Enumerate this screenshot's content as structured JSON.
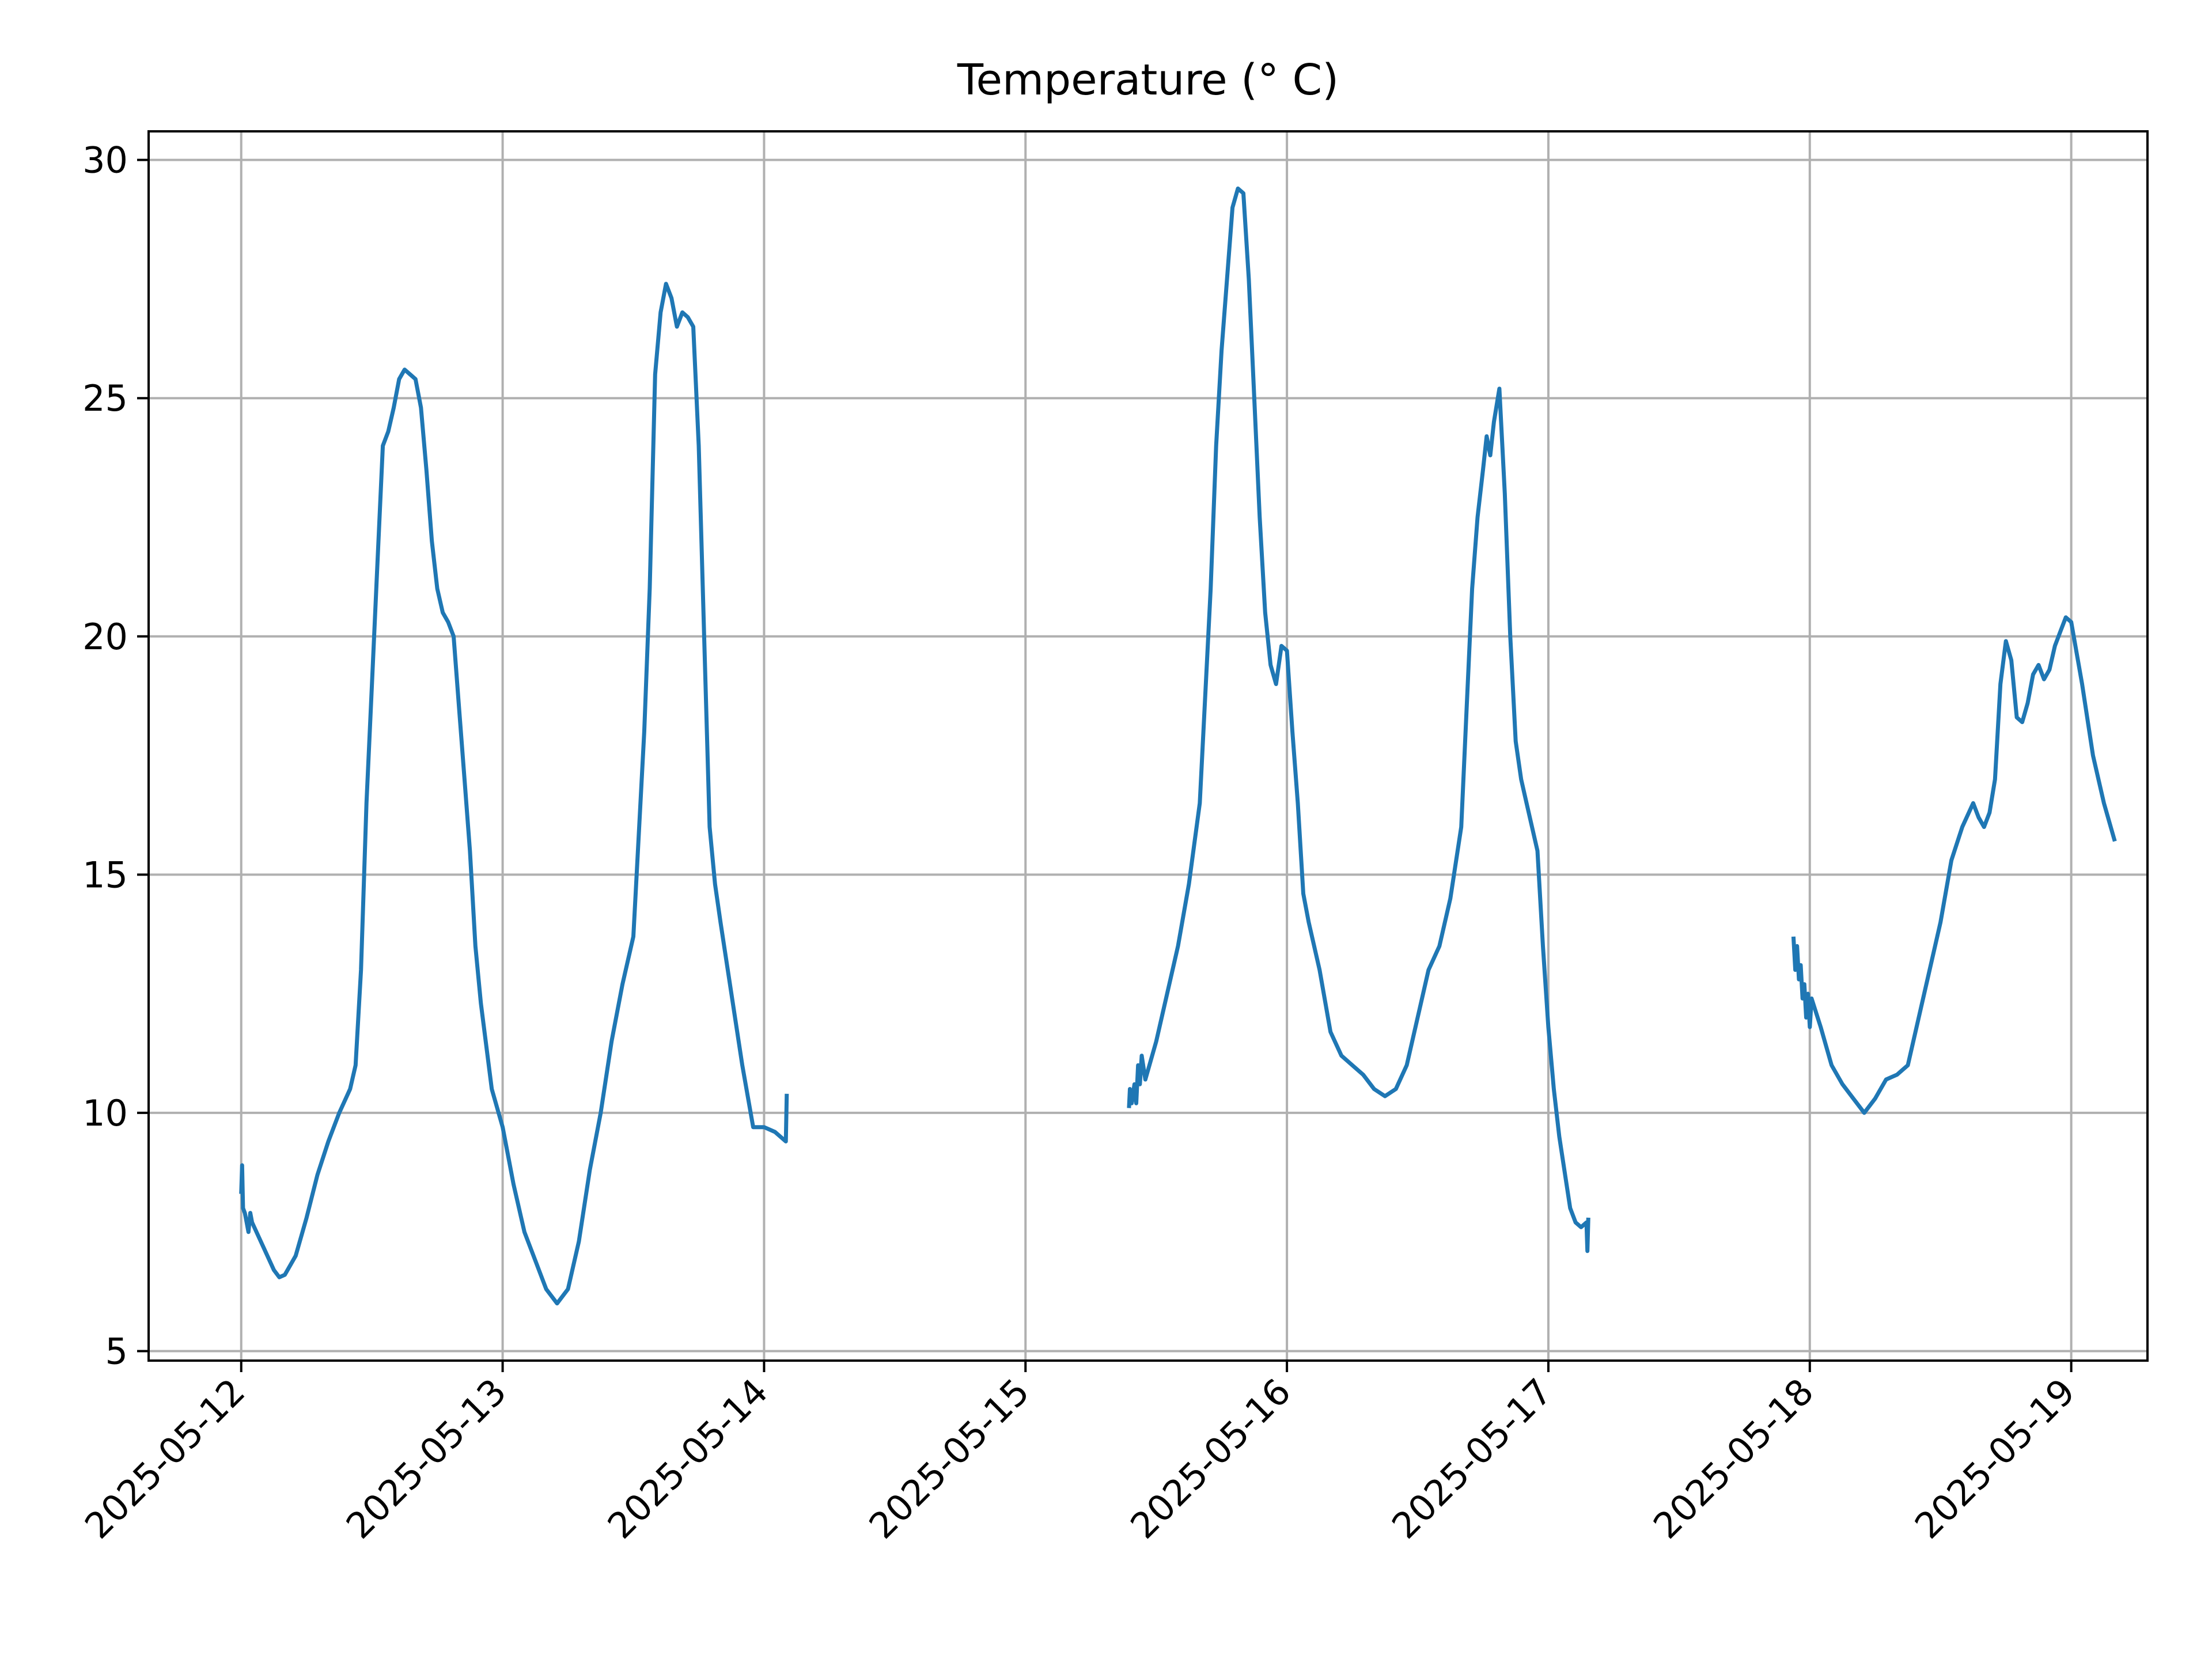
{
  "chart_data": {
    "type": "line",
    "title": "Temperature (° C)",
    "xlabel": "",
    "ylabel": "",
    "x_type": "date",
    "xlim": [
      "2025-05-11T15:30",
      "2025-05-19T07:00"
    ],
    "ylim": [
      4.8,
      30.6
    ],
    "x_ticks": [
      "2025-05-12",
      "2025-05-13",
      "2025-05-14",
      "2025-05-15",
      "2025-05-16",
      "2025-05-17",
      "2025-05-18",
      "2025-05-19"
    ],
    "y_ticks": [
      5,
      10,
      15,
      20,
      25,
      30
    ],
    "grid": true,
    "color": "#1f77b4",
    "series": [
      {
        "segments": [
          [
            [
              "2025-05-12T00:00",
              8.3
            ],
            [
              "2025-05-12T00:05",
              8.9
            ],
            [
              "2025-05-12T00:10",
              8.0
            ],
            [
              "2025-05-12T00:20",
              7.9
            ],
            [
              "2025-05-12T00:30",
              7.7
            ],
            [
              "2025-05-12T00:40",
              7.5
            ],
            [
              "2025-05-12T00:50",
              7.9
            ],
            [
              "2025-05-12T01:00",
              7.7
            ],
            [
              "2025-05-12T02:00",
              7.2
            ],
            [
              "2025-05-12T03:00",
              6.7
            ],
            [
              "2025-05-12T03:30",
              6.55
            ],
            [
              "2025-05-12T04:00",
              6.6
            ],
            [
              "2025-05-12T05:00",
              7.0
            ],
            [
              "2025-05-12T06:00",
              7.8
            ],
            [
              "2025-05-12T07:00",
              8.7
            ],
            [
              "2025-05-12T08:00",
              9.4
            ],
            [
              "2025-05-12T09:00",
              10.0
            ],
            [
              "2025-05-12T10:00",
              10.5
            ],
            [
              "2025-05-12T10:30",
              11.0
            ],
            [
              "2025-05-12T11:00",
              13.0
            ],
            [
              "2025-05-12T11:30",
              16.5
            ],
            [
              "2025-05-12T12:00",
              19.0
            ],
            [
              "2025-05-12T12:30",
              21.5
            ],
            [
              "2025-05-12T13:00",
              24.0
            ],
            [
              "2025-05-12T13:30",
              24.3
            ],
            [
              "2025-05-12T14:00",
              24.8
            ],
            [
              "2025-05-12T14:30",
              25.4
            ],
            [
              "2025-05-12T15:00",
              25.6
            ],
            [
              "2025-05-12T15:30",
              25.5
            ],
            [
              "2025-05-12T16:00",
              25.4
            ],
            [
              "2025-05-12T16:30",
              24.8
            ],
            [
              "2025-05-12T17:00",
              23.5
            ],
            [
              "2025-05-12T17:30",
              22.0
            ],
            [
              "2025-05-12T18:00",
              21.0
            ],
            [
              "2025-05-12T18:30",
              20.5
            ],
            [
              "2025-05-12T19:00",
              20.3
            ],
            [
              "2025-05-12T19:30",
              20.0
            ],
            [
              "2025-05-12T20:00",
              18.5
            ],
            [
              "2025-05-12T20:30",
              17.0
            ],
            [
              "2025-05-12T21:00",
              15.5
            ],
            [
              "2025-05-12T21:30",
              13.5
            ],
            [
              "2025-05-12T22:00",
              12.3
            ],
            [
              "2025-05-12T23:00",
              10.5
            ],
            [
              "2025-05-13T00:00",
              9.7
            ],
            [
              "2025-05-13T01:00",
              8.5
            ],
            [
              "2025-05-13T02:00",
              7.5
            ],
            [
              "2025-05-13T03:00",
              6.9
            ],
            [
              "2025-05-13T04:00",
              6.3
            ],
            [
              "2025-05-13T05:00",
              6.0
            ],
            [
              "2025-05-13T06:00",
              6.3
            ],
            [
              "2025-05-13T07:00",
              7.3
            ],
            [
              "2025-05-13T08:00",
              8.8
            ],
            [
              "2025-05-13T09:00",
              10.0
            ],
            [
              "2025-05-13T10:00",
              11.5
            ],
            [
              "2025-05-13T11:00",
              12.7
            ],
            [
              "2025-05-13T12:00",
              13.7
            ],
            [
              "2025-05-13T13:00",
              18.0
            ],
            [
              "2025-05-13T13:30",
              21.0
            ],
            [
              "2025-05-13T14:00",
              25.5
            ],
            [
              "2025-05-13T14:30",
              26.8
            ],
            [
              "2025-05-13T15:00",
              27.4
            ],
            [
              "2025-05-13T15:30",
              27.1
            ],
            [
              "2025-05-13T16:00",
              26.5
            ],
            [
              "2025-05-13T16:30",
              26.8
            ],
            [
              "2025-05-13T17:00",
              26.7
            ],
            [
              "2025-05-13T17:30",
              26.5
            ],
            [
              "2025-05-13T18:00",
              24.0
            ],
            [
              "2025-05-13T18:30",
              20.0
            ],
            [
              "2025-05-13T19:00",
              16.0
            ],
            [
              "2025-05-13T19:30",
              14.8
            ],
            [
              "2025-05-13T20:00",
              14.0
            ],
            [
              "2025-05-13T21:00",
              12.5
            ],
            [
              "2025-05-13T22:00",
              11.0
            ],
            [
              "2025-05-13T23:00",
              9.7
            ],
            [
              "2025-05-14T00:00",
              9.7
            ],
            [
              "2025-05-14T01:00",
              9.6
            ],
            [
              "2025-05-14T02:00",
              9.4
            ],
            [
              "2025-05-14T02:05",
              10.4
            ]
          ],
          [
            [
              "2025-05-15T09:30",
              10.1
            ],
            [
              "2025-05-15T09:35",
              10.5
            ],
            [
              "2025-05-15T09:45",
              10.2
            ],
            [
              "2025-05-15T10:00",
              10.6
            ],
            [
              "2025-05-15T10:10",
              10.2
            ],
            [
              "2025-05-15T10:20",
              11.0
            ],
            [
              "2025-05-15T10:30",
              10.6
            ],
            [
              "2025-05-15T10:40",
              11.2
            ],
            [
              "2025-05-15T11:00",
              10.7
            ],
            [
              "2025-05-15T12:00",
              11.5
            ],
            [
              "2025-05-15T13:00",
              12.5
            ],
            [
              "2025-05-15T14:00",
              13.5
            ],
            [
              "2025-05-15T15:00",
              14.8
            ],
            [
              "2025-05-15T16:00",
              16.5
            ],
            [
              "2025-05-15T17:00",
              21.0
            ],
            [
              "2025-05-15T17:30",
              24.0
            ],
            [
              "2025-05-15T18:00",
              26.0
            ],
            [
              "2025-05-15T18:30",
              27.5
            ],
            [
              "2025-05-15T19:00",
              29.0
            ],
            [
              "2025-05-15T19:30",
              29.4
            ],
            [
              "2025-05-15T20:00",
              29.3
            ],
            [
              "2025-05-15T20:30",
              27.5
            ],
            [
              "2025-05-15T21:00",
              25.0
            ],
            [
              "2025-05-15T21:30",
              22.5
            ],
            [
              "2025-05-15T22:00",
              20.5
            ],
            [
              "2025-05-15T22:30",
              19.4
            ],
            [
              "2025-05-15T23:00",
              19.0
            ],
            [
              "2025-05-15T23:30",
              19.8
            ],
            [
              "2025-05-16T00:00",
              19.7
            ],
            [
              "2025-05-16T00:30",
              18.0
            ],
            [
              "2025-05-16T01:00",
              16.5
            ],
            [
              "2025-05-16T01:30",
              14.6
            ],
            [
              "2025-05-16T02:00",
              14.0
            ],
            [
              "2025-05-16T03:00",
              13.0
            ],
            [
              "2025-05-16T04:00",
              11.7
            ],
            [
              "2025-05-16T05:00",
              11.2
            ],
            [
              "2025-05-16T06:00",
              11.0
            ],
            [
              "2025-05-16T07:00",
              10.8
            ],
            [
              "2025-05-16T08:00",
              10.5
            ],
            [
              "2025-05-16T09:00",
              10.35
            ],
            [
              "2025-05-16T10:00",
              10.5
            ],
            [
              "2025-05-16T11:00",
              11.0
            ],
            [
              "2025-05-16T12:00",
              12.0
            ],
            [
              "2025-05-16T13:00",
              13.0
            ],
            [
              "2025-05-16T14:00",
              13.5
            ],
            [
              "2025-05-16T15:00",
              14.5
            ],
            [
              "2025-05-16T16:00",
              16.0
            ],
            [
              "2025-05-16T16:30",
              18.5
            ],
            [
              "2025-05-16T17:00",
              21.0
            ],
            [
              "2025-05-16T17:30",
              22.5
            ],
            [
              "2025-05-16T18:00",
              23.5
            ],
            [
              "2025-05-16T18:20",
              24.2
            ],
            [
              "2025-05-16T18:40",
              23.8
            ],
            [
              "2025-05-16T19:00",
              24.5
            ],
            [
              "2025-05-16T19:30",
              25.2
            ],
            [
              "2025-05-16T20:00",
              23.0
            ],
            [
              "2025-05-16T20:30",
              20.0
            ],
            [
              "2025-05-16T21:00",
              17.8
            ],
            [
              "2025-05-16T21:30",
              17.0
            ],
            [
              "2025-05-16T22:00",
              16.5
            ],
            [
              "2025-05-16T23:00",
              15.5
            ],
            [
              "2025-05-16T23:30",
              13.5
            ],
            [
              "2025-05-17T00:00",
              11.8
            ],
            [
              "2025-05-17T00:30",
              10.5
            ],
            [
              "2025-05-17T01:00",
              9.5
            ],
            [
              "2025-05-17T02:00",
              8.0
            ],
            [
              "2025-05-17T02:30",
              7.7
            ],
            [
              "2025-05-17T03:00",
              7.6
            ],
            [
              "2025-05-17T03:30",
              7.7
            ],
            [
              "2025-05-17T03:35",
              7.1
            ],
            [
              "2025-05-17T03:40",
              7.8
            ]
          ],
          [
            [
              "2025-05-17T22:30",
              13.7
            ],
            [
              "2025-05-17T22:40",
              13.0
            ],
            [
              "2025-05-17T22:50",
              13.5
            ],
            [
              "2025-05-17T23:00",
              12.8
            ],
            [
              "2025-05-17T23:10",
              13.1
            ],
            [
              "2025-05-17T23:20",
              12.4
            ],
            [
              "2025-05-17T23:30",
              12.7
            ],
            [
              "2025-05-17T23:40",
              12.0
            ],
            [
              "2025-05-17T23:50",
              12.5
            ],
            [
              "2025-05-18T00:00",
              11.8
            ],
            [
              "2025-05-18T00:10",
              12.4
            ],
            [
              "2025-05-18T01:00",
              11.8
            ],
            [
              "2025-05-18T02:00",
              11.0
            ],
            [
              "2025-05-18T03:00",
              10.6
            ],
            [
              "2025-05-18T04:00",
              10.3
            ],
            [
              "2025-05-18T05:00",
              10.0
            ],
            [
              "2025-05-18T06:00",
              10.3
            ],
            [
              "2025-05-18T07:00",
              10.7
            ],
            [
              "2025-05-18T08:00",
              10.8
            ],
            [
              "2025-05-18T09:00",
              11.0
            ],
            [
              "2025-05-18T10:00",
              12.0
            ],
            [
              "2025-05-18T11:00",
              13.0
            ],
            [
              "2025-05-18T12:00",
              14.0
            ],
            [
              "2025-05-18T13:00",
              15.3
            ],
            [
              "2025-05-18T14:00",
              16.0
            ],
            [
              "2025-05-18T15:00",
              16.5
            ],
            [
              "2025-05-18T15:30",
              16.2
            ],
            [
              "2025-05-18T16:00",
              16.0
            ],
            [
              "2025-05-18T16:30",
              16.3
            ],
            [
              "2025-05-18T17:00",
              17.0
            ],
            [
              "2025-05-18T17:30",
              19.0
            ],
            [
              "2025-05-18T18:00",
              19.9
            ],
            [
              "2025-05-18T18:30",
              19.5
            ],
            [
              "2025-05-18T19:00",
              18.3
            ],
            [
              "2025-05-18T19:30",
              18.2
            ],
            [
              "2025-05-18T20:00",
              18.6
            ],
            [
              "2025-05-18T20:30",
              19.2
            ],
            [
              "2025-05-18T21:00",
              19.4
            ],
            [
              "2025-05-18T21:30",
              19.1
            ],
            [
              "2025-05-18T22:00",
              19.3
            ],
            [
              "2025-05-18T22:30",
              19.8
            ],
            [
              "2025-05-18T23:00",
              20.1
            ],
            [
              "2025-05-18T23:30",
              20.4
            ],
            [
              "2025-05-19T00:00",
              20.3
            ],
            [
              "2025-05-19T01:00",
              19.0
            ],
            [
              "2025-05-19T02:00",
              17.5
            ],
            [
              "2025-05-19T03:00",
              16.5
            ],
            [
              "2025-05-19T04:00",
              15.7
            ]
          ]
        ]
      }
    ]
  }
}
